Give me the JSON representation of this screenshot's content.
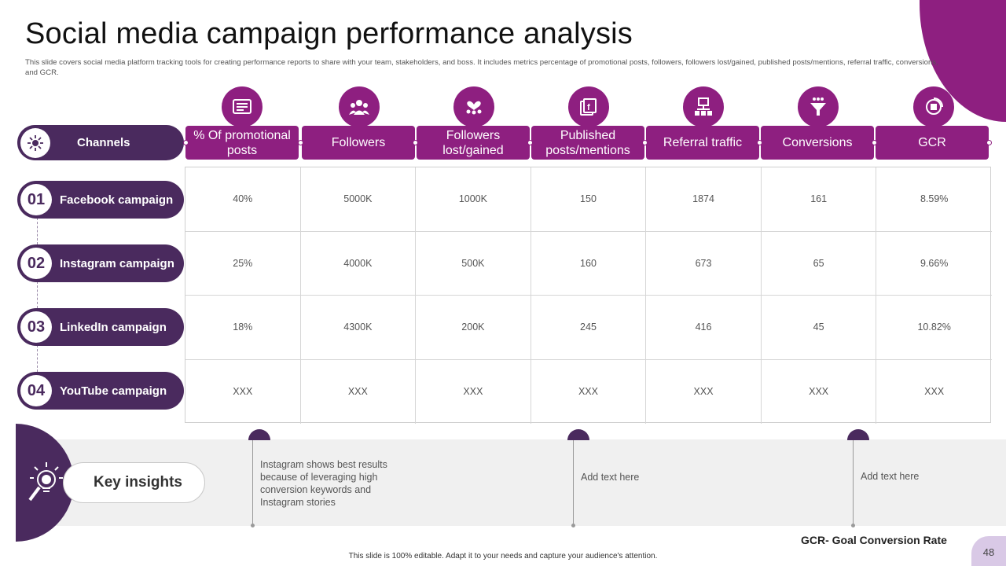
{
  "slide": {
    "title": "Social media campaign performance analysis",
    "subtitle": "This slide covers social media platform tracking tools for creating performance reports to share with your team, stakeholders, and boss. It includes metrics percentage of promotional posts, followers, followers lost/gained, published posts/mentions, referral traffic, conversions, and GCR.",
    "footer": "This slide is 100% editable. Adapt it to your needs and capture your audience's attention.",
    "page_number": "48",
    "gcr_note": "GCR- Goal Conversion Rate"
  },
  "colors": {
    "accent": "#8e1f80",
    "dark": "#4a2a5e",
    "band": "#f0f0f0"
  },
  "table": {
    "channels_label": "Channels",
    "columns": [
      {
        "label": "% Of promotional posts",
        "icon": "promo-icon"
      },
      {
        "label": "Followers",
        "icon": "followers-icon"
      },
      {
        "label": "Followers lost/gained",
        "icon": "followers-change-icon"
      },
      {
        "label": "Published posts/mentions",
        "icon": "published-posts-icon"
      },
      {
        "label": "Referral traffic",
        "icon": "referral-icon"
      },
      {
        "label": "Conversions",
        "icon": "conversion-funnel-icon"
      },
      {
        "label": "GCR",
        "icon": "gcr-icon"
      }
    ],
    "rows": [
      {
        "num": "01",
        "name": "Facebook campaign",
        "values": [
          "40%",
          "5000K",
          "1000K",
          "150",
          "1874",
          "161",
          "8.59%"
        ]
      },
      {
        "num": "02",
        "name": "Instagram campaign",
        "values": [
          "25%",
          "4000K",
          "500K",
          "160",
          "673",
          "65",
          "9.66%"
        ]
      },
      {
        "num": "03",
        "name": "LinkedIn campaign",
        "values": [
          "18%",
          "4300K",
          "200K",
          "245",
          "416",
          "45",
          "10.82%"
        ]
      },
      {
        "num": "04",
        "name": "YouTube campaign",
        "values": [
          "XXX",
          "XXX",
          "XXX",
          "XXX",
          "XXX",
          "XXX",
          "XXX"
        ]
      }
    ]
  },
  "insights": {
    "label": "Key insights",
    "items": [
      "Instagram  shows best results because of leveraging  high conversion  keywords and Instagram  stories",
      "Add text here",
      "Add text here"
    ]
  }
}
